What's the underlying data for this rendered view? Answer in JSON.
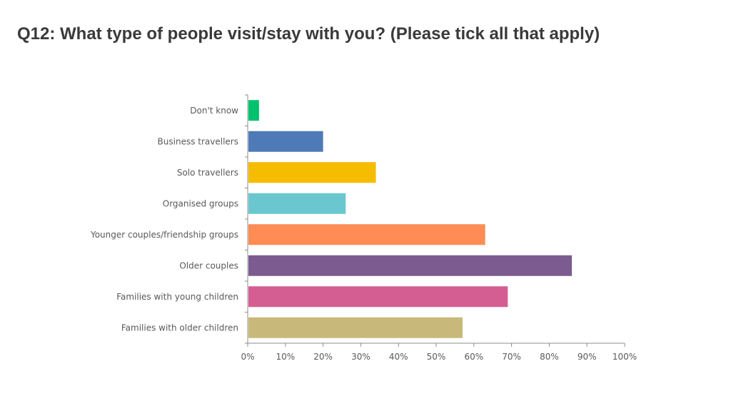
{
  "title": "Q12: What type of people visit/stay with you? (Please tick all that apply)",
  "chart_data": {
    "type": "bar",
    "orientation": "horizontal",
    "title": "Q12: What type of people visit/stay with you? (Please tick all that apply)",
    "xlabel": "",
    "ylabel": "",
    "xlim": [
      0,
      100
    ],
    "tick_values": [
      0,
      10,
      20,
      30,
      40,
      50,
      60,
      70,
      80,
      90,
      100
    ],
    "tick_labels": [
      "0%",
      "10%",
      "20%",
      "30%",
      "40%",
      "50%",
      "60%",
      "70%",
      "80%",
      "90%",
      "100%"
    ],
    "grid": false,
    "legend": "none",
    "categories": [
      "Don't know",
      "Business travellers",
      "Solo travellers",
      "Organised groups",
      "Younger couples/friendship groups",
      "Older couples",
      "Families with young children",
      "Families with older children"
    ],
    "values": [
      3,
      20,
      34,
      26,
      63,
      86,
      69,
      57
    ],
    "colors": [
      "#00c16e",
      "#4f7ab8",
      "#f6bc00",
      "#6ac7cf",
      "#ff8c55",
      "#7b5b90",
      "#d45e92",
      "#c8b97a"
    ]
  }
}
